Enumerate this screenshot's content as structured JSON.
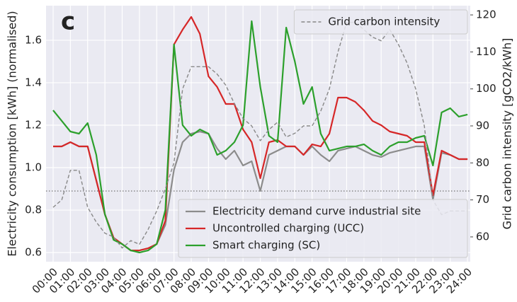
{
  "chart_data": {
    "type": "line",
    "panel_label": "c",
    "ylabel": "Electricity consumption [kWh] (normalised)",
    "y2label": "Grid carbon intensity [gCO2/kWh]",
    "x": [
      0,
      0.5,
      1,
      1.5,
      2,
      2.5,
      3,
      3.5,
      4,
      4.5,
      5,
      5.5,
      6,
      6.5,
      7,
      7.5,
      8,
      8.5,
      9,
      9.5,
      10,
      10.5,
      11,
      11.5,
      12,
      12.5,
      13,
      13.5,
      14,
      14.5,
      15,
      15.5,
      16,
      16.5,
      17,
      17.5,
      18,
      18.5,
      19,
      19.5,
      20,
      20.5,
      21,
      21.5,
      22,
      22.5,
      23,
      23.5,
      24
    ],
    "xlim": [
      -0.41,
      24.16
    ],
    "xticks": [
      {
        "value": 0,
        "label": "00:00"
      },
      {
        "value": 1,
        "label": "01:00"
      },
      {
        "value": 2,
        "label": "02:00"
      },
      {
        "value": 3,
        "label": "03:00"
      },
      {
        "value": 4,
        "label": "04:00"
      },
      {
        "value": 5,
        "label": "05:00"
      },
      {
        "value": 6,
        "label": "06:00"
      },
      {
        "value": 7,
        "label": "07:00"
      },
      {
        "value": 8,
        "label": "08:00"
      },
      {
        "value": 9,
        "label": "09:00"
      },
      {
        "value": 10,
        "label": "10:00"
      },
      {
        "value": 11,
        "label": "11:00"
      },
      {
        "value": 12,
        "label": "12:00"
      },
      {
        "value": 13,
        "label": "13:00"
      },
      {
        "value": 14,
        "label": "14:00"
      },
      {
        "value": 15,
        "label": "15:00"
      },
      {
        "value": 16,
        "label": "16:00"
      },
      {
        "value": 17,
        "label": "17:00"
      },
      {
        "value": 18,
        "label": "18:00"
      },
      {
        "value": 19,
        "label": "19:00"
      },
      {
        "value": 20,
        "label": "20:00"
      },
      {
        "value": 21,
        "label": "21:00"
      },
      {
        "value": 22,
        "label": "22:00"
      },
      {
        "value": 23,
        "label": "23:00"
      },
      {
        "value": 24,
        "label": "24:00"
      }
    ],
    "ylim": [
      0.557,
      1.763
    ],
    "yticks": [
      0.6,
      0.8,
      {
        "value": 1.0,
        "label": "1.0"
      },
      1.2,
      1.4,
      1.6
    ],
    "y2lim": [
      53.3,
      122.5
    ],
    "y2ticks": [
      60,
      70,
      80,
      90,
      100,
      110,
      120
    ],
    "grid": true,
    "hline": 0.89,
    "legend_loc": "lower right",
    "legend2_loc": "upper right",
    "series": [
      {
        "name": "Electricity demand curve industrial site",
        "color": "#8c8c8c",
        "axis": "y",
        "dashed": false,
        "values": [
          1.1,
          1.1,
          1.12,
          1.1,
          1.1,
          0.94,
          0.78,
          0.67,
          0.64,
          0.61,
          0.61,
          0.62,
          0.64,
          0.73,
          0.99,
          1.12,
          1.16,
          1.17,
          1.16,
          1.09,
          1.04,
          1.08,
          1.01,
          1.03,
          0.89,
          1.06,
          1.08,
          1.1,
          1.1,
          1.06,
          1.1,
          1.06,
          1.03,
          1.08,
          1.09,
          1.1,
          1.08,
          1.06,
          1.05,
          1.07,
          1.08,
          1.09,
          1.1,
          1.1,
          0.85,
          1.07,
          1.06,
          1.04,
          1.04
        ]
      },
      {
        "name": "Uncontrolled charging (UCC)",
        "color": "#d62728",
        "axis": "y",
        "dashed": false,
        "values": [
          1.1,
          1.1,
          1.12,
          1.1,
          1.1,
          0.94,
          0.78,
          0.67,
          0.64,
          0.61,
          0.61,
          0.62,
          0.64,
          0.75,
          1.58,
          1.65,
          1.71,
          1.63,
          1.43,
          1.38,
          1.3,
          1.3,
          1.18,
          1.12,
          0.95,
          1.12,
          1.13,
          1.1,
          1.1,
          1.06,
          1.11,
          1.1,
          1.16,
          1.33,
          1.33,
          1.31,
          1.27,
          1.22,
          1.2,
          1.17,
          1.16,
          1.15,
          1.12,
          1.12,
          0.87,
          1.08,
          1.06,
          1.04,
          1.04
        ]
      },
      {
        "name": "Smart charging (SC)",
        "color": "#2ca02c",
        "axis": "y",
        "dashed": false,
        "values": [
          1.27,
          1.22,
          1.17,
          1.16,
          1.21,
          1.06,
          0.78,
          0.66,
          0.64,
          0.61,
          0.6,
          0.61,
          0.64,
          0.8,
          1.58,
          1.2,
          1.15,
          1.18,
          1.16,
          1.06,
          1.08,
          1.12,
          1.2,
          1.69,
          1.38,
          1.15,
          1.12,
          1.66,
          1.5,
          1.3,
          1.38,
          1.16,
          1.08,
          1.09,
          1.1,
          1.1,
          1.11,
          1.08,
          1.06,
          1.1,
          1.12,
          1.12,
          1.14,
          1.15,
          1.01,
          1.26,
          1.28,
          1.24,
          1.25
        ]
      },
      {
        "name": "Grid carbon intensity",
        "color": "#888888",
        "axis": "y2",
        "dashed": true,
        "values": [
          68,
          70,
          78,
          78,
          68,
          64,
          61,
          60,
          57,
          59,
          58,
          62,
          67,
          73,
          80,
          100,
          106,
          106,
          106,
          104,
          101,
          96,
          92,
          90,
          86,
          89,
          91,
          87,
          88,
          90,
          90,
          94,
          100,
          110,
          118,
          118,
          116,
          114,
          113,
          116,
          112,
          107,
          100,
          90,
          70,
          66,
          67,
          67,
          67
        ]
      }
    ]
  }
}
